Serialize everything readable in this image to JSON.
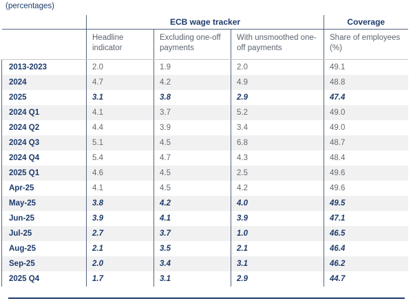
{
  "subtitle": "(percentages)",
  "colors": {
    "navy_text": "#1c3a6b",
    "grid_line": "#51637c",
    "light_border": "#c6c6c6",
    "stripe_bg": "#f1f1f2",
    "gray_text": "#63686f"
  },
  "table": {
    "group_headers": [
      {
        "label": "ECB wage tracker",
        "span": 3
      },
      {
        "label": "Coverage",
        "span": 1
      }
    ],
    "columns": [
      "Headline indicator",
      "Excluding one-off payments",
      "With unsmoothed one-off payments",
      "Share of employees (%)"
    ],
    "rows": [
      {
        "label": "2013-2023",
        "values": [
          "2.0",
          "1.9",
          "2.0",
          "49.1"
        ],
        "emphasis": false
      },
      {
        "label": "2024",
        "values": [
          "4.7",
          "4.2",
          "4.9",
          "48.8"
        ],
        "emphasis": false
      },
      {
        "label": "2025",
        "values": [
          "3.1",
          "3.8",
          "2.9",
          "47.4"
        ],
        "emphasis": true
      },
      {
        "label": "2024 Q1",
        "values": [
          "4.1",
          "3.7",
          "5.2",
          "49.0"
        ],
        "emphasis": false
      },
      {
        "label": "2024 Q2",
        "values": [
          "4.4",
          "3.9",
          "3.4",
          "49.0"
        ],
        "emphasis": false
      },
      {
        "label": "2024 Q3",
        "values": [
          "5.1",
          "4.5",
          "6.8",
          "48.7"
        ],
        "emphasis": false
      },
      {
        "label": "2024 Q4",
        "values": [
          "5.4",
          "4.7",
          "4.3",
          "48.4"
        ],
        "emphasis": false
      },
      {
        "label": "2025 Q1",
        "values": [
          "4.6",
          "4.5",
          "2.5",
          "49.6"
        ],
        "emphasis": false
      },
      {
        "label": "Apr-25",
        "values": [
          "4.1",
          "4.5",
          "4.2",
          "49.6"
        ],
        "emphasis": false
      },
      {
        "label": "May-25",
        "values": [
          "3.8",
          "4.2",
          "4.0",
          "49.5"
        ],
        "emphasis": true
      },
      {
        "label": "Jun-25",
        "values": [
          "3.9",
          "4.1",
          "3.9",
          "47.1"
        ],
        "emphasis": true
      },
      {
        "label": "Jul-25",
        "values": [
          "2.7",
          "3.7",
          "1.0",
          "46.5"
        ],
        "emphasis": true
      },
      {
        "label": "Aug-25",
        "values": [
          "2.1",
          "3.5",
          "2.1",
          "46.4"
        ],
        "emphasis": true
      },
      {
        "label": "Sep-25",
        "values": [
          "2.0",
          "3.4",
          "3.1",
          "46.2"
        ],
        "emphasis": true
      },
      {
        "label": "2025 Q4",
        "values": [
          "1.7",
          "3.1",
          "2.9",
          "44.7"
        ],
        "emphasis": true
      }
    ]
  }
}
